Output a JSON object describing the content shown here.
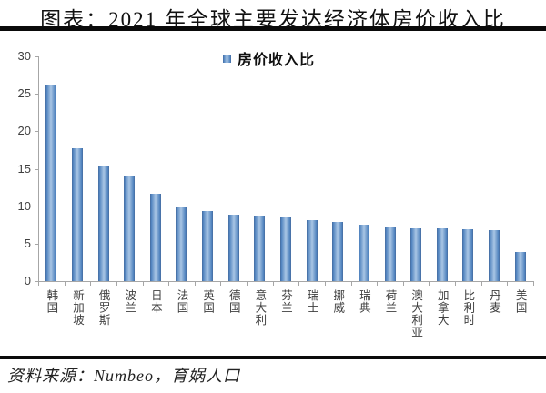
{
  "title": "图表：2021 年全球主要发达经济体房价收入比",
  "legend": {
    "label": "房价收入比",
    "color": "#4E81BD"
  },
  "source": "资料来源：Numbeo，育娲人口",
  "colors": {
    "bar_edge": "#4E81BD",
    "bar_center": "#A9C6E5",
    "axis": "#A6A6A6",
    "text": "#3F3F3F",
    "rule": "#0A0A0A"
  },
  "chart_data": {
    "type": "bar",
    "title": "2021 年全球主要发达经济体房价收入比",
    "series_name": "房价收入比",
    "categories": [
      "韩国",
      "新加坡",
      "俄罗斯",
      "波兰",
      "日本",
      "法国",
      "英国",
      "德国",
      "意大利",
      "芬兰",
      "瑞士",
      "挪威",
      "瑞典",
      "荷兰",
      "澳大利亚",
      "加拿大",
      "比利时",
      "丹麦",
      "美国"
    ],
    "values": [
      26.2,
      17.7,
      15.3,
      14.1,
      11.6,
      10.0,
      9.3,
      8.9,
      8.8,
      8.5,
      8.1,
      7.9,
      7.5,
      7.2,
      7.1,
      7.1,
      6.9,
      6.8,
      3.9
    ],
    "xlabel": "",
    "ylabel": "",
    "ylim": [
      0,
      30
    ],
    "yticks": [
      0,
      5,
      10,
      15,
      20,
      25,
      30
    ],
    "grid": false,
    "legend_position": "top-center"
  }
}
